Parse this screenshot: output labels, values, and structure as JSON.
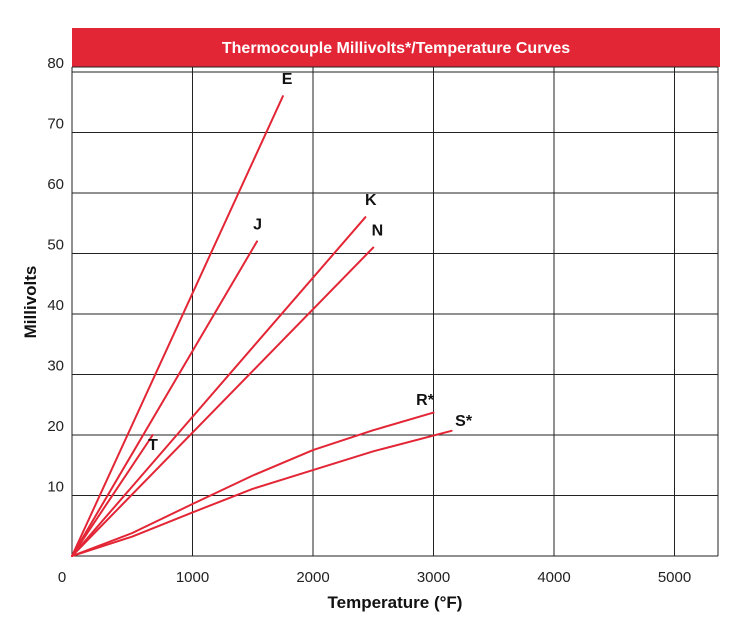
{
  "chart_data": {
    "type": "line",
    "title": "Thermocouple Millivolts*/Temperature Curves",
    "xlabel": "Temperature (°F)",
    "ylabel": "Millivolts",
    "xlim": [
      0,
      5400
    ],
    "ylim": [
      0,
      83
    ],
    "x_ticks": [
      {
        "value": 0,
        "label": "0"
      },
      {
        "value": 1000,
        "label": "1000"
      },
      {
        "value": 2000,
        "label": "2000"
      },
      {
        "value": 3000,
        "label": "3000"
      },
      {
        "value": 4000,
        "label": "4000"
      },
      {
        "value": 5000,
        "label": "5000"
      }
    ],
    "y_ticks": [
      {
        "value": 10,
        "label": "10"
      },
      {
        "value": 20,
        "label": "20"
      },
      {
        "value": 30,
        "label": "30"
      },
      {
        "value": 40,
        "label": "40"
      },
      {
        "value": 50,
        "label": "50"
      },
      {
        "value": 60,
        "label": "60"
      },
      {
        "value": 70,
        "label": "70"
      },
      {
        "value": 80,
        "label": "80"
      }
    ],
    "grid": true,
    "colors": {
      "title_bar": "#e32636",
      "line": "#e32636",
      "grid": "#222222"
    },
    "series": [
      {
        "name": "E",
        "points": [
          [
            0,
            0
          ],
          [
            1750,
            76
          ]
        ],
        "label_pos": [
          1785,
          78
        ]
      },
      {
        "name": "J",
        "points": [
          [
            0,
            0
          ],
          [
            1535,
            52
          ]
        ],
        "label_pos": [
          1540,
          54
        ]
      },
      {
        "name": "K",
        "points": [
          [
            0,
            0
          ],
          [
            2435,
            56
          ]
        ],
        "label_pos": [
          2480,
          58
        ]
      },
      {
        "name": "N",
        "points": [
          [
            0,
            0
          ],
          [
            2500,
            51
          ]
        ],
        "label_pos": [
          2535,
          53
        ]
      },
      {
        "name": "T",
        "points": [
          [
            0,
            0
          ],
          [
            670,
            20
          ]
        ],
        "label_pos": [
          672,
          17.5
        ]
      },
      {
        "name": "R*",
        "points": [
          [
            0,
            0
          ],
          [
            500,
            3.8
          ],
          [
            1000,
            8.6
          ],
          [
            1500,
            13.3
          ],
          [
            2000,
            17.5
          ],
          [
            2500,
            20.8
          ],
          [
            3000,
            23.7
          ]
        ],
        "label_pos": [
          2930,
          25
        ]
      },
      {
        "name": "S*",
        "points": [
          [
            0,
            0
          ],
          [
            500,
            3.2
          ],
          [
            1000,
            7.2
          ],
          [
            1500,
            11.1
          ],
          [
            2000,
            14.2
          ],
          [
            2500,
            17.3
          ],
          [
            3150,
            20.7
          ]
        ],
        "label_pos": [
          3250,
          21.5
        ]
      }
    ]
  }
}
